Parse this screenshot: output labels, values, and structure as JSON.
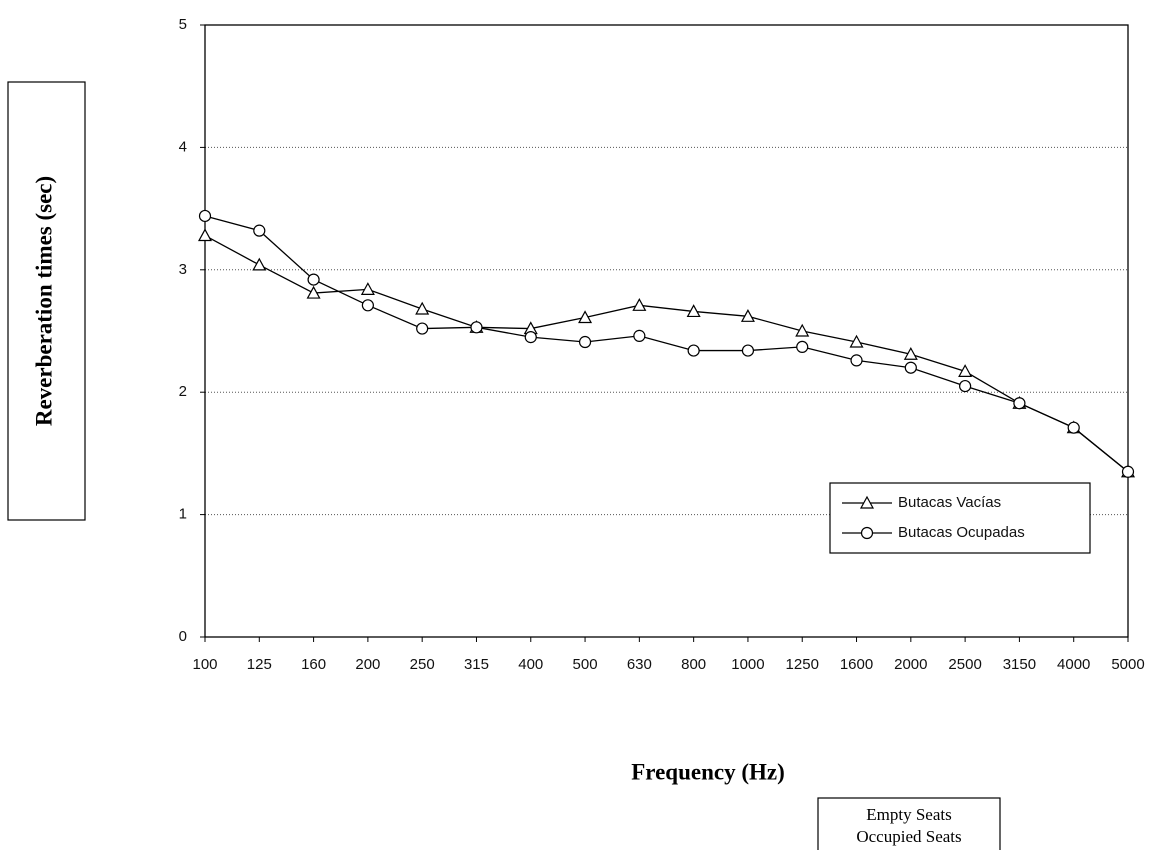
{
  "chart_data": {
    "type": "line",
    "x_label": "Frequency (Hz)",
    "y_label": "Reverberation times (sec)",
    "categories": [
      "100",
      "125",
      "160",
      "200",
      "250",
      "315",
      "400",
      "500",
      "630",
      "800",
      "1000",
      "1250",
      "1600",
      "2000",
      "2500",
      "3150",
      "4000",
      "5000"
    ],
    "series": [
      {
        "name": "Butacas Vacías",
        "color": "#000000",
        "marker": "triangle",
        "values": [
          3.28,
          3.04,
          2.81,
          2.84,
          2.68,
          2.53,
          2.52,
          2.61,
          2.71,
          2.66,
          2.62,
          2.5,
          2.41,
          2.31,
          2.17,
          1.91,
          1.71,
          1.35
        ]
      },
      {
        "name": "Butacas Ocupadas",
        "color": "#000000",
        "marker": "circle",
        "values": [
          3.44,
          3.32,
          2.92,
          2.71,
          2.52,
          2.53,
          2.45,
          2.41,
          2.46,
          2.34,
          2.34,
          2.37,
          2.26,
          2.2,
          2.05,
          1.91,
          1.71,
          1.35
        ]
      }
    ],
    "ylim": [
      0,
      5
    ],
    "yticks": [
      0,
      1,
      2,
      3,
      4,
      5
    ],
    "grid": true,
    "legend": "lower right",
    "annotations": [
      "Empty Seats",
      "Occupied Seats"
    ]
  }
}
